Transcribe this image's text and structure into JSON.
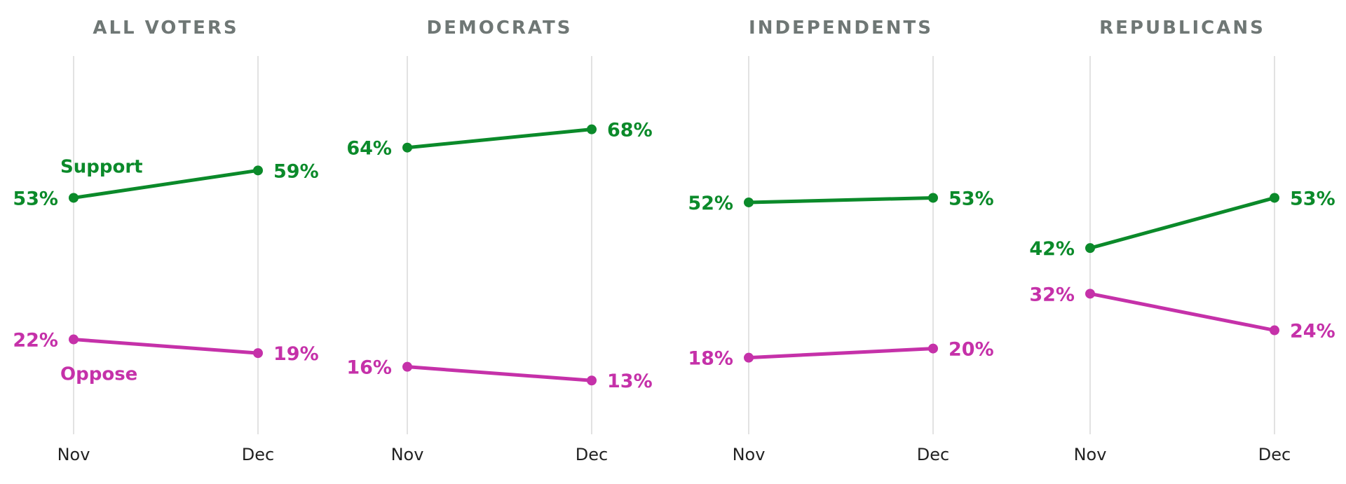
{
  "colors": {
    "support": "#0b8a2a",
    "oppose": "#c531a9",
    "gridline": "#d9d9d9",
    "title": "#6f7775",
    "tick": "#222222"
  },
  "legend": {
    "support_label": "Support",
    "oppose_label": "Oppose"
  },
  "chart_data": [
    {
      "type": "line",
      "title": "ALL VOTERS",
      "categories": [
        "Nov",
        "Dec"
      ],
      "series": [
        {
          "name": "Support",
          "values": [
            53,
            59
          ],
          "labels": [
            "53%",
            "59%"
          ]
        },
        {
          "name": "Oppose",
          "values": [
            22,
            19
          ],
          "labels": [
            "22%",
            "19%"
          ]
        }
      ],
      "ylim": [
        0,
        100
      ],
      "grid": "vertical"
    },
    {
      "type": "line",
      "title": "DEMOCRATS",
      "categories": [
        "Nov",
        "Dec"
      ],
      "series": [
        {
          "name": "Support",
          "values": [
            64,
            68
          ],
          "labels": [
            "64%",
            "68%"
          ]
        },
        {
          "name": "Oppose",
          "values": [
            16,
            13
          ],
          "labels": [
            "16%",
            "13%"
          ]
        }
      ],
      "ylim": [
        0,
        100
      ],
      "grid": "vertical"
    },
    {
      "type": "line",
      "title": "INDEPENDENTS",
      "categories": [
        "Nov",
        "Dec"
      ],
      "series": [
        {
          "name": "Support",
          "values": [
            52,
            53
          ],
          "labels": [
            "52%",
            "53%"
          ]
        },
        {
          "name": "Oppose",
          "values": [
            18,
            20
          ],
          "labels": [
            "18%",
            "20%"
          ]
        }
      ],
      "ylim": [
        0,
        100
      ],
      "grid": "vertical"
    },
    {
      "type": "line",
      "title": "REPUBLICANS",
      "categories": [
        "Nov",
        "Dec"
      ],
      "series": [
        {
          "name": "Support",
          "values": [
            42,
            53
          ],
          "labels": [
            "42%",
            "53%"
          ]
        },
        {
          "name": "Oppose",
          "values": [
            32,
            24
          ],
          "labels": [
            "32%",
            "24%"
          ]
        }
      ],
      "ylim": [
        0,
        100
      ],
      "grid": "vertical"
    }
  ]
}
